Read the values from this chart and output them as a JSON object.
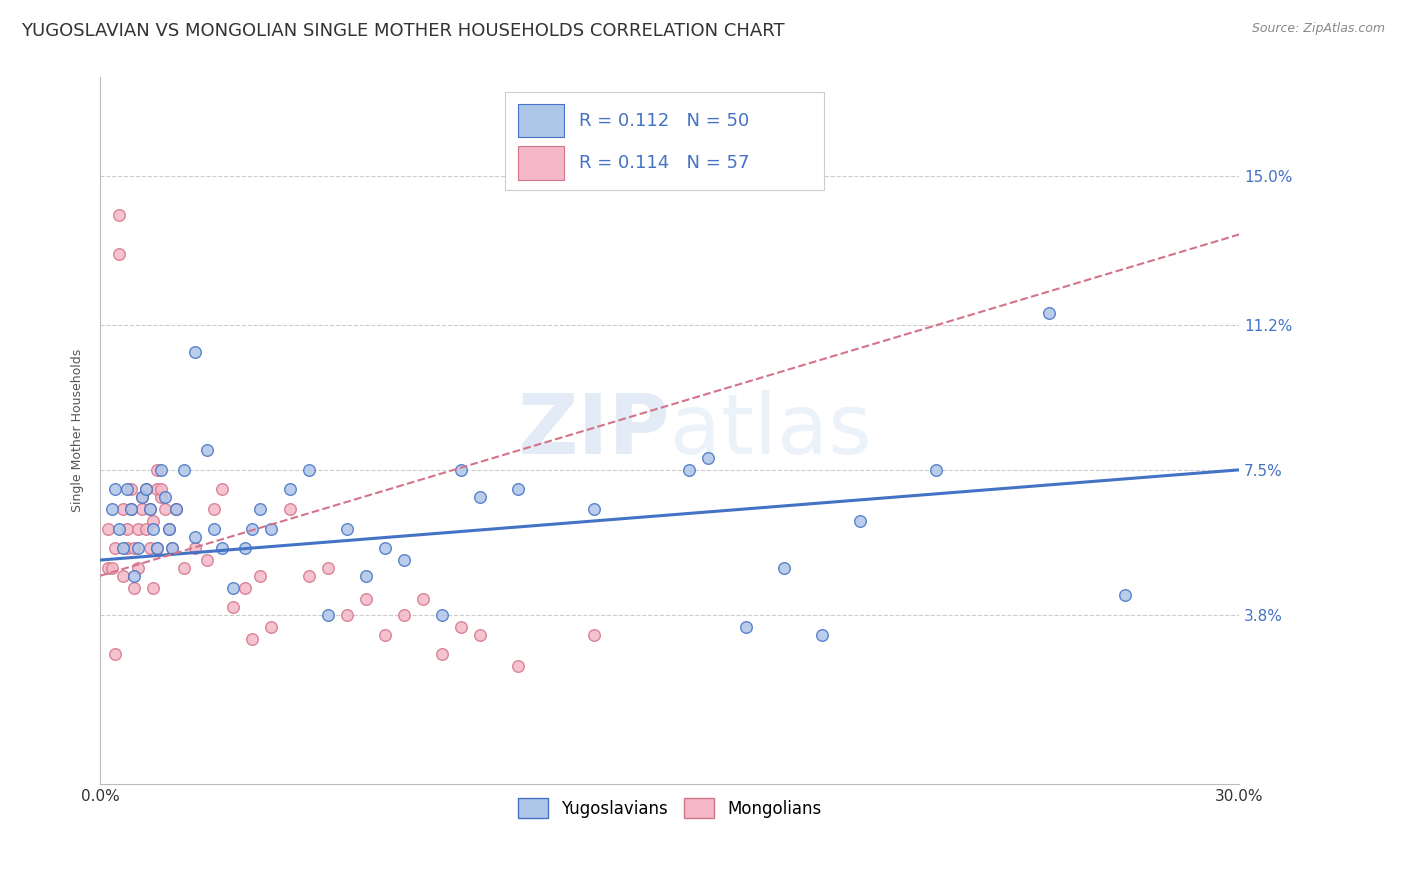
{
  "title": "YUGOSLAVIAN VS MONGOLIAN SINGLE MOTHER HOUSEHOLDS CORRELATION CHART",
  "source": "Source: ZipAtlas.com",
  "ylabel": "Single Mother Households",
  "xlim": [
    0.0,
    0.3
  ],
  "ylim": [
    -0.005,
    0.175
  ],
  "ytick_labels_right": [
    "3.8%",
    "7.5%",
    "11.2%",
    "15.0%"
  ],
  "ytick_positions_right": [
    0.038,
    0.075,
    0.112,
    0.15
  ],
  "background_color": "#ffffff",
  "grid_color": "#cccccc",
  "yugoslavian_color": "#aec6e8",
  "mongolian_color": "#f4b8c8",
  "yugoslavian_line_color": "#4472c4",
  "mongolian_line_color": "#d4748a",
  "title_fontsize": 13,
  "axis_label_fontsize": 9,
  "tick_fontsize": 11,
  "watermark": "ZIPatlas",
  "yug_trend": [
    0.052,
    0.075
  ],
  "mon_trend_start": 0.048,
  "mon_trend_end": 0.135,
  "yugoslavian_scatter_x": [
    0.003,
    0.004,
    0.005,
    0.006,
    0.007,
    0.008,
    0.009,
    0.01,
    0.011,
    0.012,
    0.013,
    0.014,
    0.015,
    0.016,
    0.017,
    0.018,
    0.019,
    0.02,
    0.022,
    0.025,
    0.025,
    0.028,
    0.03,
    0.032,
    0.035,
    0.038,
    0.04,
    0.042,
    0.045,
    0.05,
    0.055,
    0.06,
    0.065,
    0.07,
    0.075,
    0.08,
    0.09,
    0.095,
    0.1,
    0.11,
    0.13,
    0.155,
    0.16,
    0.17,
    0.18,
    0.19,
    0.2,
    0.22,
    0.25,
    0.27
  ],
  "yugoslavian_scatter_y": [
    0.065,
    0.07,
    0.06,
    0.055,
    0.07,
    0.065,
    0.048,
    0.055,
    0.068,
    0.07,
    0.065,
    0.06,
    0.055,
    0.075,
    0.068,
    0.06,
    0.055,
    0.065,
    0.075,
    0.058,
    0.105,
    0.08,
    0.06,
    0.055,
    0.045,
    0.055,
    0.06,
    0.065,
    0.06,
    0.07,
    0.075,
    0.038,
    0.06,
    0.048,
    0.055,
    0.052,
    0.038,
    0.075,
    0.068,
    0.07,
    0.065,
    0.075,
    0.078,
    0.035,
    0.05,
    0.033,
    0.062,
    0.075,
    0.115,
    0.043
  ],
  "mongolian_scatter_x": [
    0.002,
    0.002,
    0.003,
    0.004,
    0.004,
    0.005,
    0.005,
    0.006,
    0.006,
    0.007,
    0.007,
    0.008,
    0.008,
    0.009,
    0.009,
    0.01,
    0.01,
    0.011,
    0.011,
    0.012,
    0.012,
    0.013,
    0.013,
    0.014,
    0.014,
    0.015,
    0.015,
    0.016,
    0.017,
    0.018,
    0.019,
    0.02,
    0.022,
    0.025,
    0.028,
    0.03,
    0.032,
    0.035,
    0.038,
    0.04,
    0.042,
    0.045,
    0.05,
    0.055,
    0.06,
    0.065,
    0.07,
    0.075,
    0.08,
    0.085,
    0.09,
    0.095,
    0.1,
    0.11,
    0.13,
    0.015,
    0.016
  ],
  "mongolian_scatter_y": [
    0.06,
    0.05,
    0.05,
    0.055,
    0.028,
    0.14,
    0.13,
    0.065,
    0.048,
    0.06,
    0.055,
    0.065,
    0.07,
    0.055,
    0.045,
    0.06,
    0.05,
    0.068,
    0.065,
    0.07,
    0.06,
    0.055,
    0.065,
    0.062,
    0.045,
    0.055,
    0.07,
    0.068,
    0.065,
    0.06,
    0.055,
    0.065,
    0.05,
    0.055,
    0.052,
    0.065,
    0.07,
    0.04,
    0.045,
    0.032,
    0.048,
    0.035,
    0.065,
    0.048,
    0.05,
    0.038,
    0.042,
    0.033,
    0.038,
    0.042,
    0.028,
    0.035,
    0.033,
    0.025,
    0.033,
    0.075,
    0.07
  ]
}
